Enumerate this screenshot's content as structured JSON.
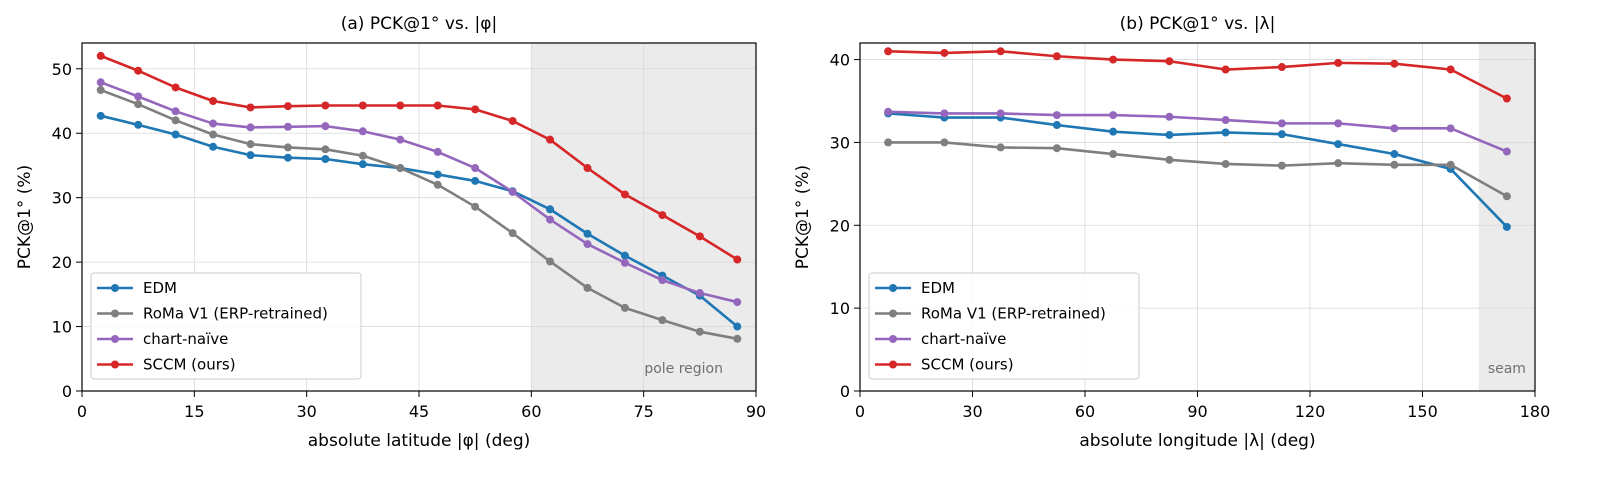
{
  "chart_data": [
    {
      "id": "a",
      "type": "line",
      "title": "(a) PCK@1° vs. |φ|",
      "xlabel": "absolute latitude |φ| (deg)",
      "ylabel": "PCK@1° (%)",
      "xlim": [
        0,
        90
      ],
      "ylim": [
        0,
        54
      ],
      "xticks": [
        0,
        15,
        30,
        45,
        60,
        75,
        90
      ],
      "yticks": [
        0,
        10,
        20,
        30,
        40,
        50
      ],
      "grid": true,
      "legend_position": "bottom-left",
      "region": {
        "label": "pole region",
        "x_start": 60,
        "x_end": 90,
        "color": "#ebebeb"
      },
      "x": [
        2.5,
        7.5,
        12.5,
        17.5,
        22.5,
        27.5,
        32.5,
        37.5,
        42.5,
        47.5,
        52.5,
        57.5,
        62.5,
        67.5,
        72.5,
        77.5,
        82.5,
        87.5
      ],
      "series": [
        {
          "name": "EDM",
          "color": "#1f77b4",
          "values": [
            42.7,
            41.3,
            39.8,
            37.9,
            36.6,
            36.2,
            36.0,
            35.2,
            34.6,
            33.6,
            32.6,
            31.0,
            28.2,
            24.4,
            21.0,
            17.9,
            14.8,
            10.0
          ]
        },
        {
          "name": "RoMa V1 (ERP-retrained)",
          "color": "#7f7f7f",
          "values": [
            46.7,
            44.5,
            42.0,
            39.8,
            38.3,
            37.8,
            37.5,
            36.5,
            34.6,
            32.0,
            28.6,
            24.5,
            20.1,
            16.0,
            12.9,
            11.0,
            9.2,
            8.1
          ]
        },
        {
          "name": "chart-naïve",
          "color": "#9467bd",
          "values": [
            47.9,
            45.7,
            43.4,
            41.5,
            40.9,
            41.0,
            41.1,
            40.3,
            39.0,
            37.1,
            34.6,
            30.9,
            26.6,
            22.8,
            19.9,
            17.2,
            15.2,
            13.8
          ]
        },
        {
          "name": "SCCM (ours)",
          "color": "#d62728",
          "values": [
            52.0,
            49.7,
            47.1,
            45.0,
            44.0,
            44.2,
            44.3,
            44.3,
            44.3,
            44.3,
            43.7,
            41.9,
            39.0,
            34.6,
            30.5,
            27.3,
            24.0,
            20.4
          ]
        }
      ]
    },
    {
      "id": "b",
      "type": "line",
      "title": "(b) PCK@1° vs. |λ|",
      "xlabel": "absolute longitude |λ| (deg)",
      "ylabel": "PCK@1° (%)",
      "xlim": [
        0,
        180
      ],
      "ylim": [
        0,
        42
      ],
      "xticks": [
        0,
        30,
        60,
        90,
        120,
        150,
        180
      ],
      "yticks": [
        0,
        10,
        20,
        30,
        40
      ],
      "grid": true,
      "legend_position": "bottom-left",
      "region": {
        "label": "seam",
        "x_start": 165,
        "x_end": 180,
        "color": "#ebebeb"
      },
      "x": [
        7.5,
        22.5,
        37.5,
        52.5,
        67.5,
        82.5,
        97.5,
        112.5,
        127.5,
        142.5,
        157.5,
        172.5
      ],
      "series": [
        {
          "name": "EDM",
          "color": "#1f77b4",
          "values": [
            33.5,
            33.0,
            33.0,
            32.1,
            31.3,
            30.9,
            31.2,
            31.0,
            29.8,
            28.6,
            26.8,
            19.8
          ]
        },
        {
          "name": "RoMa V1 (ERP-retrained)",
          "color": "#7f7f7f",
          "values": [
            30.0,
            30.0,
            29.4,
            29.3,
            28.6,
            27.9,
            27.4,
            27.2,
            27.5,
            27.3,
            27.3,
            23.5
          ]
        },
        {
          "name": "chart-naïve",
          "color": "#9467bd",
          "values": [
            33.7,
            33.5,
            33.5,
            33.3,
            33.3,
            33.1,
            32.7,
            32.3,
            32.3,
            31.7,
            31.7,
            28.9
          ]
        },
        {
          "name": "SCCM (ours)",
          "color": "#d62728",
          "values": [
            41.0,
            40.8,
            41.0,
            40.4,
            40.0,
            39.8,
            38.8,
            39.1,
            39.6,
            39.5,
            38.8,
            35.3
          ]
        }
      ]
    }
  ]
}
